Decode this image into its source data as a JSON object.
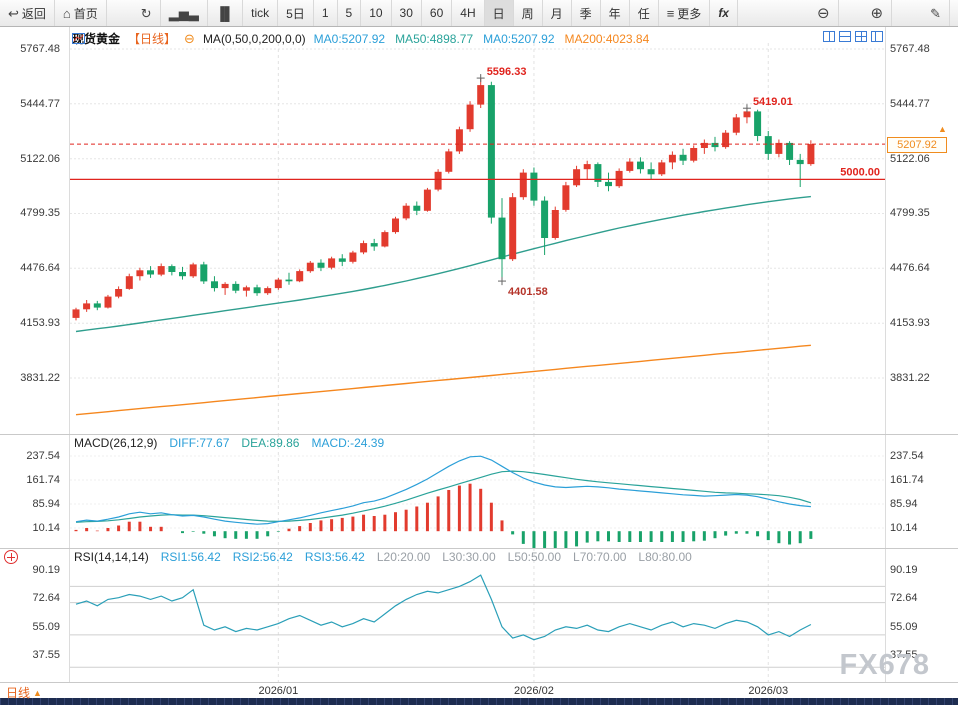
{
  "toolbar": {
    "items": [
      {
        "name": "back-button",
        "icon": "back",
        "label": "返回"
      },
      {
        "name": "home-button",
        "icon": "home",
        "label": "首页"
      },
      {
        "name": "refresh-button",
        "icon": "refresh"
      },
      {
        "name": "chart-type-bar-button",
        "icon": "bar-chart"
      },
      {
        "name": "chart-type-candle-button",
        "icon": "candle-chart"
      },
      {
        "name": "period-tick-button",
        "label": "tick"
      },
      {
        "name": "period-5d-button",
        "label": "5日"
      },
      {
        "name": "period-1m-button",
        "label": "1"
      },
      {
        "name": "period-5m-button",
        "label": "5"
      },
      {
        "name": "period-10m-button",
        "label": "10"
      },
      {
        "name": "period-30m-button",
        "label": "30"
      },
      {
        "name": "period-60m-button",
        "label": "60"
      },
      {
        "name": "period-4h-button",
        "label": "4H"
      },
      {
        "name": "period-day-button",
        "label": "日",
        "active": true
      },
      {
        "name": "period-week-button",
        "label": "周"
      },
      {
        "name": "period-month-button",
        "label": "月"
      },
      {
        "name": "period-quarter-button",
        "label": "季"
      },
      {
        "name": "period-year-button",
        "label": "年"
      },
      {
        "name": "period-custom-button",
        "label": "任"
      },
      {
        "name": "more-button",
        "icon": "more",
        "label": "更多"
      },
      {
        "name": "fx-button",
        "label": "fx"
      },
      {
        "name": "zoom-out-button",
        "icon": "zoom-out"
      },
      {
        "name": "zoom-in-button",
        "icon": "zoom-in"
      },
      {
        "name": "draw-button",
        "icon": "pencil"
      }
    ]
  },
  "legend": {
    "symbol": "现货黄金",
    "period_tag": "【日线】",
    "ma_formula": "MA(0,50,0,200,0,0)",
    "ma_values": [
      {
        "label": "MA0:5207.92",
        "color": "#2b9fd8"
      },
      {
        "label": "MA50:4898.77",
        "color": "#2aa39a"
      },
      {
        "label": "MA0:5207.92",
        "color": "#2b9fd8"
      },
      {
        "label": "MA200:4023.84",
        "color": "#f5871e"
      }
    ]
  },
  "colors": {
    "up": "#e23b2e",
    "down": "#18a269",
    "ma50": "#2f9e8e",
    "ma200": "#f5871e",
    "alert": "#e0241e",
    "diff_line": "#2b9fd8",
    "dea_line": "#2aa39a",
    "rsi_line": "#2a9fb8",
    "accent_orange": "#f08c1e",
    "icon_blue": "#3a7bd5"
  },
  "bottom": {
    "tab_label": "日线",
    "watermark": "FX678"
  },
  "chart_data": {
    "type": "candlestick",
    "title": "现货黄金 日线",
    "y_ticks": [
      5767.48,
      5444.77,
      5122.06,
      4799.35,
      4476.64,
      4153.93,
      3831.22
    ],
    "x_axis_labels": [
      "2026/01",
      "2026/02",
      "2026/03"
    ],
    "month_tick_indices": [
      19,
      43,
      65
    ],
    "levels": {
      "support_line": 5000.0,
      "current_price": 5207.92
    },
    "annotations": [
      {
        "text": "5596.33",
        "index": 38,
        "price": 5596.33,
        "position": "above",
        "color": "#e0241e"
      },
      {
        "text": "5419.01",
        "index": 63,
        "price": 5419.01,
        "position": "above",
        "color": "#e0241e"
      },
      {
        "text": "4401.58",
        "index": 40,
        "price": 4401.58,
        "position": "below",
        "color": "#b5342a"
      }
    ],
    "candles": [
      [
        4185,
        4245,
        4170,
        4235
      ],
      [
        4235,
        4290,
        4220,
        4270
      ],
      [
        4270,
        4285,
        4230,
        4245
      ],
      [
        4245,
        4320,
        4240,
        4310
      ],
      [
        4310,
        4370,
        4300,
        4355
      ],
      [
        4355,
        4445,
        4350,
        4430
      ],
      [
        4430,
        4480,
        4405,
        4465
      ],
      [
        4465,
        4490,
        4420,
        4440
      ],
      [
        4440,
        4505,
        4430,
        4490
      ],
      [
        4490,
        4500,
        4435,
        4455
      ],
      [
        4455,
        4485,
        4410,
        4430
      ],
      [
        4430,
        4510,
        4420,
        4500
      ],
      [
        4500,
        4515,
        4385,
        4400
      ],
      [
        4400,
        4430,
        4340,
        4360
      ],
      [
        4360,
        4395,
        4320,
        4385
      ],
      [
        4385,
        4400,
        4330,
        4345
      ],
      [
        4345,
        4375,
        4310,
        4365
      ],
      [
        4365,
        4380,
        4315,
        4330
      ],
      [
        4330,
        4370,
        4320,
        4360
      ],
      [
        4360,
        4420,
        4350,
        4410
      ],
      [
        4410,
        4450,
        4380,
        4400
      ],
      [
        4400,
        4470,
        4395,
        4460
      ],
      [
        4460,
        4520,
        4450,
        4510
      ],
      [
        4510,
        4530,
        4460,
        4480
      ],
      [
        4480,
        4545,
        4470,
        4535
      ],
      [
        4535,
        4560,
        4490,
        4515
      ],
      [
        4515,
        4580,
        4505,
        4570
      ],
      [
        4570,
        4640,
        4560,
        4625
      ],
      [
        4625,
        4650,
        4580,
        4605
      ],
      [
        4605,
        4700,
        4600,
        4690
      ],
      [
        4690,
        4780,
        4680,
        4770
      ],
      [
        4770,
        4860,
        4760,
        4845
      ],
      [
        4845,
        4870,
        4790,
        4815
      ],
      [
        4815,
        4950,
        4810,
        4940
      ],
      [
        4940,
        5060,
        4930,
        5045
      ],
      [
        5045,
        5180,
        5035,
        5165
      ],
      [
        5165,
        5310,
        5150,
        5295
      ],
      [
        5295,
        5460,
        5280,
        5440
      ],
      [
        5440,
        5596.33,
        5420,
        5555
      ],
      [
        5555,
        5575,
        4740,
        4775
      ],
      [
        4775,
        4890,
        4401.58,
        4530
      ],
      [
        4530,
        4920,
        4520,
        4895
      ],
      [
        4895,
        5060,
        4880,
        5040
      ],
      [
        5040,
        5070,
        4845,
        4875
      ],
      [
        4875,
        4900,
        4555,
        4655
      ],
      [
        4655,
        4840,
        4645,
        4820
      ],
      [
        4820,
        4985,
        4810,
        4965
      ],
      [
        4965,
        5080,
        4955,
        5060
      ],
      [
        5060,
        5110,
        5000,
        5090
      ],
      [
        5090,
        5100,
        4955,
        4985
      ],
      [
        4985,
        5040,
        4930,
        4960
      ],
      [
        4960,
        5065,
        4950,
        5050
      ],
      [
        5050,
        5125,
        5040,
        5105
      ],
      [
        5105,
        5130,
        5035,
        5060
      ],
      [
        5060,
        5100,
        5000,
        5030
      ],
      [
        5030,
        5115,
        5020,
        5100
      ],
      [
        5100,
        5165,
        5060,
        5145
      ],
      [
        5145,
        5180,
        5085,
        5110
      ],
      [
        5110,
        5200,
        5100,
        5185
      ],
      [
        5185,
        5235,
        5150,
        5215
      ],
      [
        5215,
        5250,
        5165,
        5190
      ],
      [
        5190,
        5290,
        5180,
        5275
      ],
      [
        5275,
        5385,
        5260,
        5365
      ],
      [
        5365,
        5419.01,
        5330,
        5400
      ],
      [
        5400,
        5410,
        5225,
        5255
      ],
      [
        5255,
        5285,
        5115,
        5150
      ],
      [
        5150,
        5235,
        5130,
        5215
      ],
      [
        5215,
        5225,
        5085,
        5115
      ],
      [
        5115,
        5150,
        4955,
        5090
      ],
      [
        5090,
        5230,
        5080,
        5207.92
      ]
    ],
    "ma50": [
      4105,
      4113,
      4121,
      4129,
      4137,
      4146,
      4155,
      4164,
      4173,
      4182,
      4191,
      4200,
      4209,
      4218,
      4227,
      4236,
      4245,
      4254,
      4263,
      4272,
      4281,
      4290,
      4300,
      4310,
      4320,
      4330,
      4341,
      4352,
      4364,
      4376,
      4389,
      4402,
      4416,
      4430,
      4445,
      4460,
      4476,
      4492,
      4509,
      4526,
      4543,
      4560,
      4576,
      4592,
      4608,
      4624,
      4640,
      4655,
      4670,
      4685,
      4700,
      4714,
      4727,
      4740,
      4753,
      4765,
      4777,
      4789,
      4800,
      4811,
      4821,
      4831,
      4841,
      4851,
      4860,
      4869,
      4877,
      4885,
      4892,
      4898.77
    ],
    "ma200": [
      3615,
      3621,
      3627,
      3633,
      3639,
      3645,
      3651,
      3657,
      3663,
      3668,
      3674,
      3680,
      3686,
      3692,
      3698,
      3704,
      3710,
      3716,
      3722,
      3728,
      3734,
      3740,
      3745,
      3751,
      3757,
      3763,
      3769,
      3775,
      3781,
      3787,
      3793,
      3799,
      3805,
      3811,
      3817,
      3822,
      3828,
      3834,
      3840,
      3846,
      3852,
      3858,
      3864,
      3870,
      3876,
      3882,
      3888,
      3894,
      3900,
      3905,
      3911,
      3917,
      3923,
      3929,
      3935,
      3941,
      3947,
      3953,
      3959,
      3965,
      3971,
      3977,
      3982,
      3988,
      3994,
      4000,
      4006,
      4012,
      4018,
      4023.84
    ],
    "macd": {
      "params": "MACD(26,12,9)",
      "diff_label": "DIFF:77.67",
      "dea_label": "DEA:89.86",
      "macd_label": "MACD:-24.39",
      "diff": 77.67,
      "dea": 89.86,
      "macd": -24.39,
      "y_ticks": [
        237.54,
        161.74,
        85.94,
        10.14
      ],
      "diff_series": [
        30,
        35,
        32,
        38,
        45,
        55,
        60,
        55,
        58,
        52,
        48,
        50,
        45,
        38,
        32,
        28,
        25,
        22,
        24,
        30,
        36,
        42,
        50,
        58,
        65,
        72,
        80,
        90,
        95,
        105,
        118,
        132,
        148,
        165,
        185,
        205,
        222,
        235,
        237,
        225,
        205,
        185,
        168,
        155,
        146,
        140,
        138,
        140,
        142,
        140,
        137,
        133,
        130,
        127,
        124,
        121,
        118,
        115,
        113,
        111,
        112,
        114,
        116,
        114,
        109,
        101,
        93,
        86,
        81,
        77.67
      ],
      "dea_series": [
        28,
        30,
        31,
        33,
        36,
        40,
        45,
        48,
        51,
        52,
        51,
        51,
        49,
        46,
        43,
        40,
        37,
        34,
        32,
        31,
        32,
        34,
        37,
        41,
        46,
        51,
        57,
        64,
        71,
        79,
        88,
        98,
        109,
        120,
        130,
        140,
        150,
        160,
        170,
        180,
        188,
        190,
        188,
        184,
        179,
        174,
        169,
        164,
        160,
        156,
        153,
        150,
        147,
        144,
        141,
        138,
        135,
        132,
        129,
        126,
        123,
        121,
        120,
        118,
        117,
        115,
        112,
        107,
        100,
        89.86
      ]
    },
    "rsi": {
      "params": "RSI(14,14,14)",
      "rsi1_label": "RSI1:56.42",
      "rsi2_label": "RSI2:56.42",
      "rsi3_label": "RSI3:56.42",
      "level_labels": [
        "L20:20.00",
        "L30:30.00",
        "L50:50.00",
        "L70:70.00",
        "L80:80.00"
      ],
      "levels": [
        20,
        30,
        50,
        70,
        80
      ],
      "y_ticks": [
        90.19,
        72.64,
        55.09,
        37.55
      ],
      "series": [
        69,
        71,
        68,
        72,
        73,
        75,
        74,
        72,
        74,
        71,
        73,
        78,
        56,
        53,
        55,
        52,
        54,
        53,
        55,
        57,
        60,
        62,
        59,
        56,
        58,
        55,
        57,
        60,
        58,
        63,
        68,
        72,
        75,
        77,
        76,
        78,
        80,
        83,
        87,
        72,
        55,
        48,
        50,
        47,
        49,
        53,
        55,
        54,
        56,
        53,
        52,
        55,
        57,
        55,
        53,
        56,
        58,
        55,
        57,
        56,
        54,
        57,
        59,
        58,
        55,
        50,
        52,
        49,
        53,
        56.42
      ]
    }
  }
}
